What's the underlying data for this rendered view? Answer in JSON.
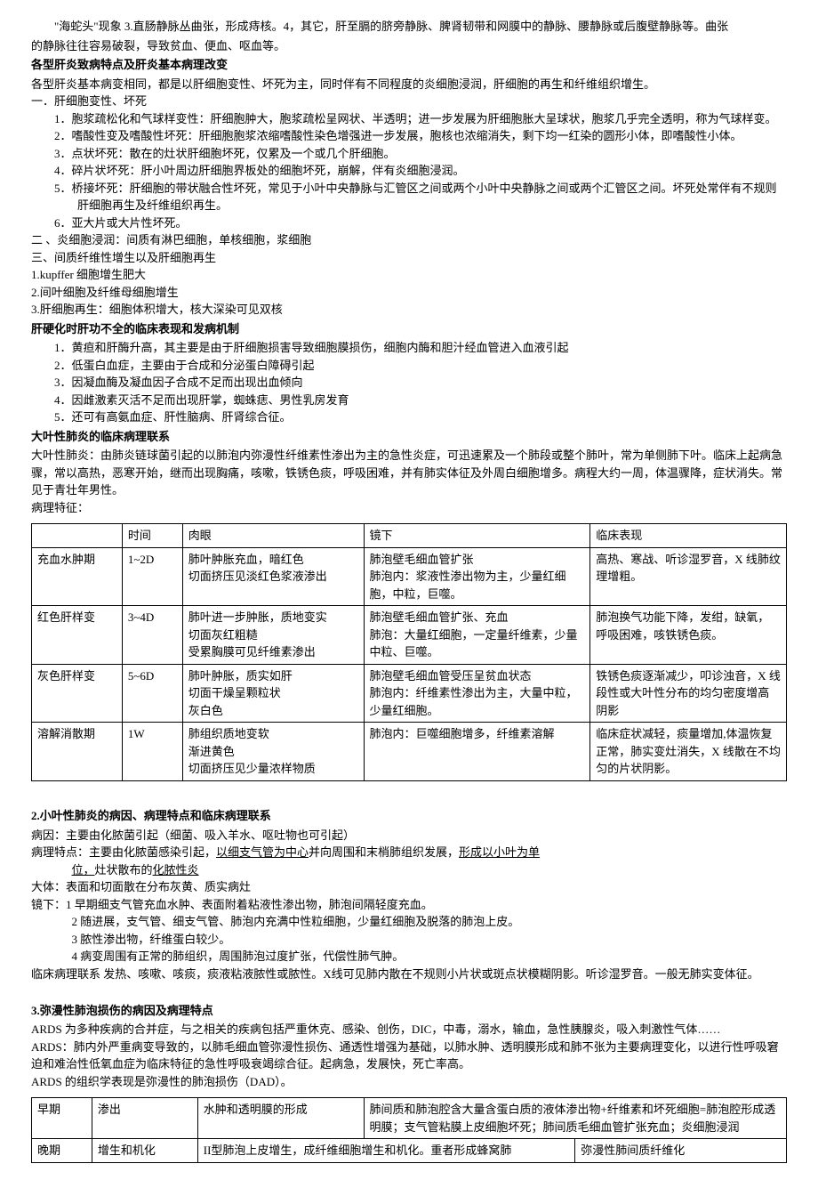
{
  "intro": {
    "line1": "\"海蛇头\"现象 3.直肠静脉丛曲张，形成痔核。4，其它，肝至膈的脐旁静脉、脾肾韧带和网膜中的静脉、腰静脉或后腹壁静脉等。曲张",
    "line2": "的静脉往往容易破裂，导致贫血、便血、呕血等。"
  },
  "sec1": {
    "title": "各型肝炎致病特点及肝炎基本病理改变",
    "p1": "各型肝炎基本病变相同，都是以肝细胞变性、坏死为主，同时伴有不同程度的炎细胞浸润，肝细胞的再生和纤维组织增生。",
    "h1": "一．肝细胞变性、坏死",
    "items": [
      "1．胞浆疏松化和气球样变性：肝细胞肿大，胞浆疏松呈网状、半透明；进一步发展为肝细胞胀大呈球状，胞浆几乎完全透明，称为气球样变。",
      "2．嗜酸性变及嗜酸性坏死：肝细胞胞浆浓缩嗜酸性染色增强进一步发展，胞核也浓缩消失，剩下均一红染的圆形小体，即嗜酸性小体。",
      "3．点状坏死：散在的灶状肝细胞坏死，仅累及一个或几个肝细胞。",
      "4．碎片状坏死：肝小叶周边肝细胞界板处的细胞坏死，崩解，伴有炎细胞浸润。",
      "5．桥接坏死：肝细胞的带状融合性坏死，常见于小叶中央静脉与汇管区之间或两个小叶中央静脉之间或两个汇管区之间。坏死处常伴有不规则肝细胞再生及纤维组织再生。",
      "6．亚大片或大片性坏死。"
    ],
    "h2": "二 、炎细胞浸润：间质有淋巴细胞，单核细胞，浆细胞",
    "h3": "三、间质纤维性增生以及肝细胞再生",
    "sub": [
      "1.kupffer 细胞增生肥大",
      "2.间叶细胞及纤维母细胞增生",
      "3.肝细胞再生：细胞体积增大，核大深染可见双核"
    ]
  },
  "sec2": {
    "title": "肝硬化时肝功不全的临床表现和发病机制",
    "items": [
      "1．黄疸和肝酶升高，其主要是由于肝细胞损害导致细胞膜损伤，细胞内酶和胆汁经血管进入血液引起",
      "2．低蛋白血症，主要由于合成和分泌蛋白障碍引起",
      "3．因凝血酶及凝血因子合成不足而出现出血倾向",
      "4．因雌激素灭活不足而出现肝掌，蜘蛛痣、男性乳房发育",
      "5．还可有高氨血症、肝性脑病、肝肾综合征。"
    ]
  },
  "sec3": {
    "title": "大叶性肺炎的临床病理联系",
    "p1": "大叶性肺炎：由肺炎链球菌引起的以肺泡内弥漫性纤维素性渗出为主的急性炎症，可迅速累及一个肺段或整个肺叶，常为单侧肺下叶。临床上起病急骤，常以高热，恶寒开始，继而出现胸痛，咳嗽，铁锈色痰，呼吸困难，并有肺实体征及外周白细胞增多。病程大约一周，体温骤降，症状消失。常见于青壮年男性。",
    "p2": "病理特征：",
    "table": {
      "headers": [
        "",
        "时间",
        "肉眼",
        "镜下",
        "临床表现"
      ],
      "rows": [
        {
          "c0": "充血水肿期",
          "c1": "1~2D",
          "c2": "肺叶肿胀充血，暗红色\n切面挤压见淡红色浆液渗出",
          "c3": "肺泡壁毛细血管扩张\n肺泡内：浆液性渗出物为主，少量红细胞，中粒，巨噬。",
          "c4": "高热、寒战、听诊湿罗音，X 线肺纹理增粗。"
        },
        {
          "c0": "红色肝样变",
          "c1": "3~4D",
          "c2": "肺叶进一步肿胀，质地变实\n切面灰红粗糙\n受累胸膜可见纤维素渗出",
          "c3": "肺泡壁毛细血管扩张、充血\n肺泡：大量红细胞，一定量纤维素，少量中粒、巨噬。",
          "c4": "肺泡换气功能下降，发绀，缺氧，呼吸困难，咳铁锈色痰。"
        },
        {
          "c0": "灰色肝样变",
          "c1": "5~6D",
          "c2": "肺叶肿胀，质实如肝\n切面干燥呈颗粒状\n灰白色",
          "c3": "肺泡壁毛细血管受压呈贫血状态\n肺泡内：纤维素性渗出为主，大量中粒，少量红细胞。",
          "c4": "铁锈色痰逐渐减少，叩诊浊音，X 线段性或大叶性分布的均匀密度增高阴影"
        },
        {
          "c0": "溶解消散期",
          "c1": "1W",
          "c2": "肺组织质地变软\n渐进黄色\n切面挤压见少量浓样物质",
          "c3": "肺泡内：巨噬细胞增多，纤维素溶解",
          "c4": "临床症状减轻，痰量增加,体温恢复正常，肺实变灶消失，X 线散在不均匀的片状阴影。"
        }
      ]
    }
  },
  "sec4": {
    "title": "2.小叶性肺炎的病因、病理特点和临床病理联系",
    "l1a": "病因：主要由化脓菌引起（细菌、吸入羊水、呕吐物也可引起）",
    "l2a": "病理特点：主要由化脓菌感染引起，",
    "l2b": "以细支气管为中心",
    "l2c": "并向周围和末梢肺组织发展，",
    "l2d": "形成以小叶为单",
    "l2e": "位，",
    "l2f": "灶状散布的",
    "l2g": "化脓性炎",
    "l3": "大体：表面和切面散在分布灰黄、质实病灶",
    "l4a": "镜下：1 早期细支气管充血水肿、表面附着粘液性渗出物，肺泡间隔轻度充血。",
    "l4b": "2 随进展，支气管、细支气管、肺泡内充满中性粒细胞，少量红细胞及脱落的肺泡上皮。",
    "l4c": "3 脓性渗出物，纤维蛋白较少。",
    "l4d": "4 病变周围有正常的肺组织，周围肺泡过度扩张，代偿性肺气肿。",
    "l5": "临床病理联系 发热、咳嗽、咳痰，痰液粘液脓性或脓性。X线可见肺内散在不规则小片状或斑点状模糊阴影。听诊湿罗音。一般无肺实变体征。"
  },
  "sec5": {
    "title": "3.弥漫性肺泡损伤的病因及病理特点",
    "p1": "ARDS 为多种疾病的合并症，与之相关的疾病包括严重休克、感染、创伤，DIC，中毒，溺水，输血，急性胰腺炎，吸入刺激性气体……",
    "p2": "ARDS：肺内外严重病变导致的，以肺毛细血管弥漫性损伤、通透性增强为基础，以肺水肿、透明膜形成和肺不张为主要病理变化，以进行性呼吸窘迫和难治性低氧血症为临床特征的急性呼吸衰竭综合征。起病急，发展快，死亡率高。",
    "p3": "ARDS 的组织学表现是弥漫性的肺泡损伤（DAD）。",
    "table": {
      "rows": [
        {
          "c0": "早期",
          "c1": "渗出",
          "c2": "水肿和透明膜的形成",
          "c3": "肺间质和肺泡腔含大量含蛋白质的液体渗出物+纤维素和坏死细胞=肺泡腔形成透明膜；支气管粘膜上皮细胞坏死；肺间质毛细血管扩张充血；炎细胞浸润",
          "c4": ""
        },
        {
          "c0": "晚期",
          "c1": "增生和机化",
          "c2": "II型肺泡上皮增生，成纤维细胞增生和机化。重者形成蜂窝肺",
          "c3": "",
          "c4": "弥漫性肺间质纤维化"
        }
      ]
    }
  }
}
